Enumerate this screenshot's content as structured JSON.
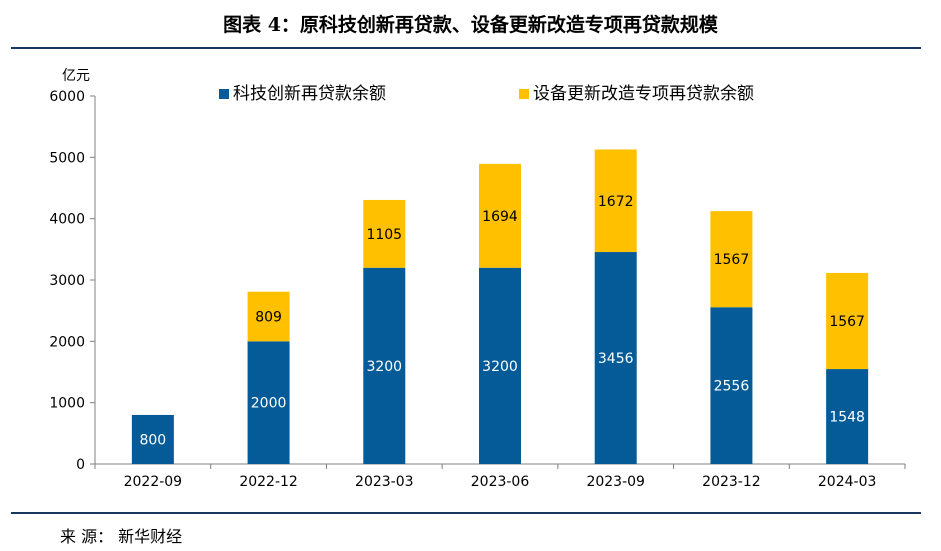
{
  "page": {
    "title": "图表 4：原科技创新再贷款、设备更新改造专项再贷款规模",
    "source": "来 源： 新华财经"
  },
  "chart_data": {
    "type": "bar",
    "stacked": true,
    "categories": [
      "2022-09",
      "2022-12",
      "2023-03",
      "2023-06",
      "2023-09",
      "2023-12",
      "2024-03"
    ],
    "series": [
      {
        "name": "科技创新再贷款余额",
        "values": [
          800,
          2000,
          3200,
          3200,
          3456,
          2556,
          1548
        ],
        "color": "#045B97"
      },
      {
        "name": "设备更新改造专项再贷款余额",
        "values": [
          null,
          809,
          1105,
          1694,
          1672,
          1567,
          1567
        ],
        "color": "#FFC000"
      }
    ],
    "ylabel": "亿元",
    "ylim": [
      0,
      6000
    ],
    "yticks": [
      0,
      1000,
      2000,
      3000,
      4000,
      5000,
      6000
    ],
    "grid": false,
    "legend": "top",
    "data_labels": true
  }
}
